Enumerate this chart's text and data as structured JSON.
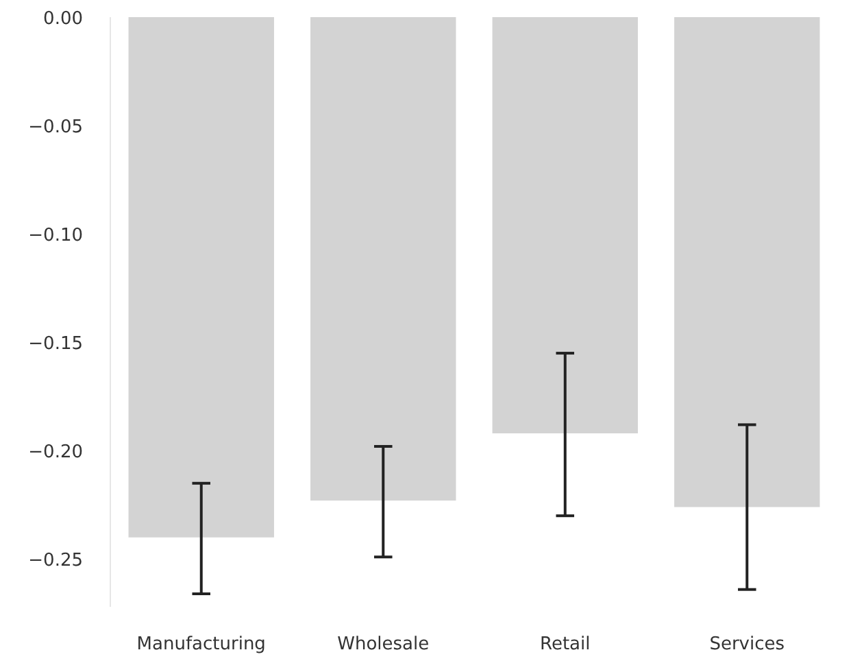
{
  "chart_data": {
    "type": "bar",
    "categories": [
      "Manufacturing",
      "Wholesale",
      "Retail",
      "Services"
    ],
    "values": [
      -0.24,
      -0.223,
      -0.192,
      -0.226
    ],
    "errors": [
      [
        -0.266,
        -0.215
      ],
      [
        -0.249,
        -0.198
      ],
      [
        -0.23,
        -0.155
      ],
      [
        -0.264,
        -0.188
      ]
    ],
    "color": "#d3d3d3",
    "ylim": [
      -0.272,
      0.0
    ],
    "yticks": [
      {
        "value": 0,
        "label": "0.00"
      },
      {
        "value": -0.05,
        "label": "−0.05"
      },
      {
        "value": -0.1,
        "label": "−0.10"
      },
      {
        "value": -0.15,
        "label": "−0.15"
      },
      {
        "value": -0.2,
        "label": "−0.20"
      },
      {
        "value": -0.25,
        "label": "−0.25"
      }
    ],
    "grid": false
  }
}
